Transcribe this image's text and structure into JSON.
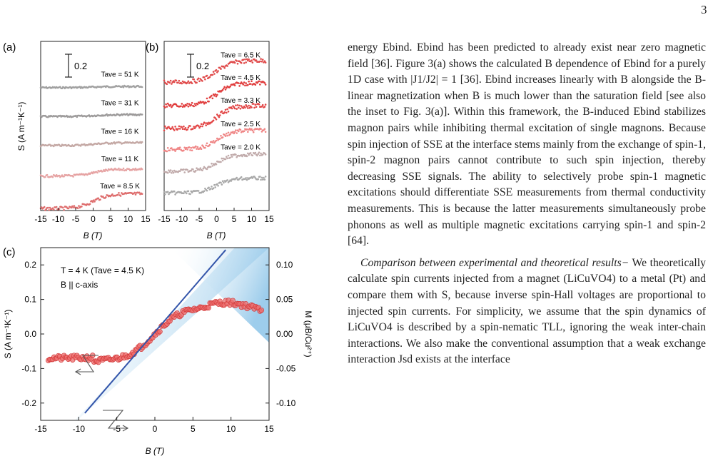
{
  "page": {
    "number": "3"
  },
  "figure": {
    "panel_a": {
      "label": "(a)",
      "scale_bar": "0.2",
      "ylabel": "S (A m⁻¹K⁻¹)",
      "xlabel": "B (T)",
      "xticks": [
        "-15",
        "-10",
        "-5",
        "0",
        "5",
        "10",
        "15"
      ],
      "curves": [
        {
          "label": "Tave = 51 K",
          "color": "#a0a0a0",
          "amplitude": 0.005
        },
        {
          "label": "Tave = 31 K",
          "color": "#9c9a9a",
          "amplitude": 0.008
        },
        {
          "label": "Tave = 16 K",
          "color": "#c4a8a4",
          "amplitude": 0.012
        },
        {
          "label": "Tave = 11 K",
          "color": "#e6a3a3",
          "amplitude": 0.03
        },
        {
          "label": "Tave = 8.5 K",
          "color": "#de6d6d",
          "amplitude": 0.065
        }
      ]
    },
    "panel_b": {
      "label": "(b)",
      "scale_bar": "0.2",
      "xlabel": "B (T)",
      "xticks": [
        "-15",
        "-10",
        "-5",
        "0",
        "5",
        "10",
        "15"
      ],
      "curves": [
        {
          "label": "Tave = 6.5 K",
          "color": "#e04a4a",
          "amplitude": 0.095
        },
        {
          "label": "Tave = 4.5 K",
          "color": "#e03c3c",
          "amplitude": 0.1
        },
        {
          "label": "Tave = 3.3 K",
          "color": "#e24545",
          "amplitude": 0.1
        },
        {
          "label": "Tave = 2.5 K",
          "color": "#ef8585",
          "amplitude": 0.085
        },
        {
          "label": "Tave = 2.0 K",
          "color": "#c0aaaa",
          "amplitude": 0.075
        },
        {
          "label": "",
          "color": "#a8a8a8",
          "amplitude": 0.065
        }
      ]
    },
    "panel_c": {
      "label": "(c)",
      "annotation_line1": "T = 4 K (Tave = 4.5 K)",
      "annotation_line2": "B || c-axis",
      "ylabel_left": "S (A m⁻¹K⁻¹)",
      "ylabel_right": "M (μB/Cu²⁺)",
      "xlabel": "B (T)",
      "xticks": [
        "-15",
        "-10",
        "-5",
        "0",
        "5",
        "10",
        "15"
      ],
      "yticks_left": [
        "0.2",
        "0.1",
        "0.0",
        "-0.1",
        "-0.2"
      ],
      "yticks_right": [
        "0.10",
        "0.05",
        "0.00",
        "-0.05",
        "-0.10"
      ],
      "xlim": [
        -15,
        15
      ],
      "ylim_left": [
        -0.25,
        0.25
      ],
      "ylim_right": [
        -0.125,
        0.125
      ],
      "colors": {
        "data": "#ee6e6e",
        "data_edge": "#d23a3a",
        "magnetization": "#3355aa",
        "shade": "#8cc4e8"
      }
    }
  },
  "text": {
    "p1": "energy Ebind. Ebind has been predicted to already exist near zero magnetic field [36]. Figure 3(a) shows the calculated B dependence of Ebind for a purely 1D case with |J1/J2| = 1 [36]. Ebind increases linearly with B alongside the B-linear magnetization when B is much lower than the saturation field [see also the inset to Fig. 3(a)]. Within this framework, the B-induced Ebind stabilizes magnon pairs while inhibiting thermal excitation of single magnons. Because spin injection of SSE at the interface stems mainly from the exchange of spin-1, spin-2 magnon pairs cannot contribute to such spin injection, thereby decreasing SSE signals. The ability to selectively probe spin-1 magnetic excitations should differentiate SSE measurements from thermal conductivity measurements. This is because the latter measurements simultaneously probe phonons as well as multiple magnetic excitations carrying spin-1 and spin-2 [64].",
    "p2_heading": "Comparison between experimental and theoretical results−",
    "p2": " We theoretically calculate spin currents injected from a magnet (LiCuVO4) to a metal (Pt) and compare them with S, because inverse spin-Hall voltages are proportional to injected spin currents. For simplicity, we assume that the spin dynamics of LiCuVO4 is described by a spin-nematic TLL, ignoring the weak inter-chain interactions. We also make the conventional assumption that a weak exchange interaction Jsd exists at the interface"
  }
}
